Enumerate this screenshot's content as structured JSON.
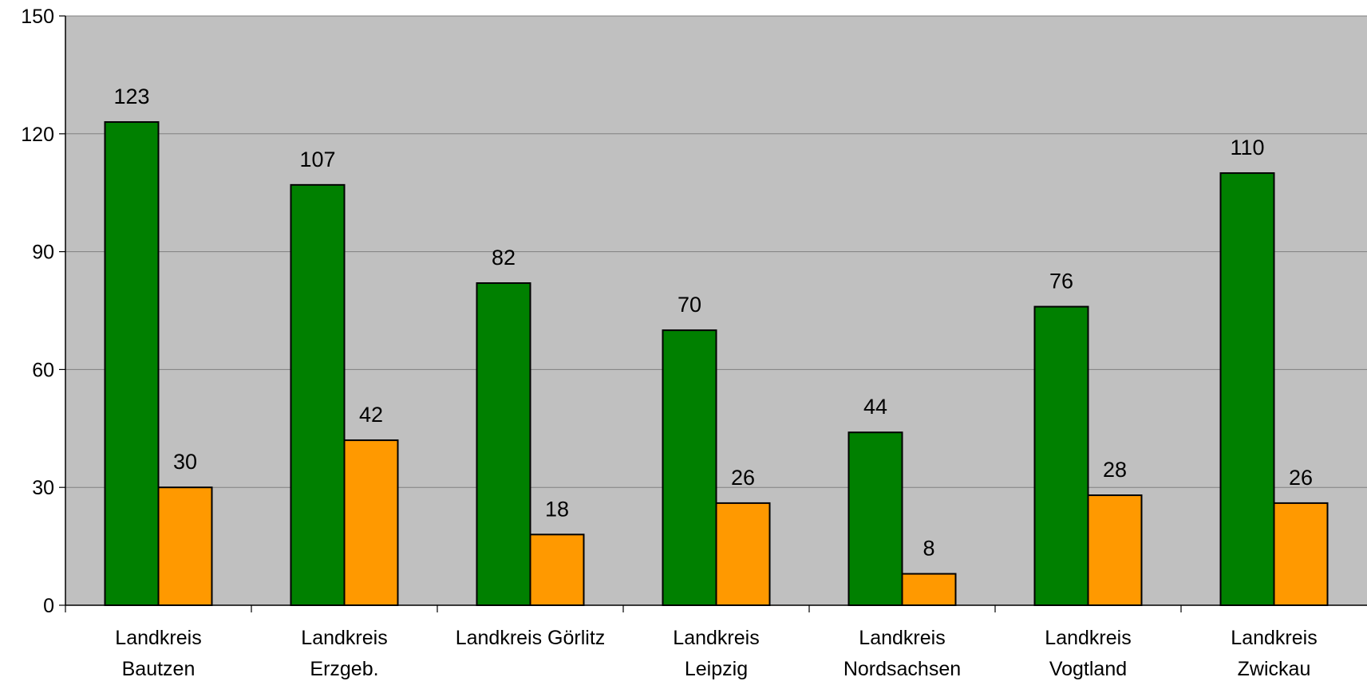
{
  "chart_data": {
    "type": "bar",
    "title": "",
    "xlabel": "",
    "ylabel": "",
    "ylim": [
      0,
      150
    ],
    "yticks": [
      0,
      30,
      60,
      90,
      120,
      150
    ],
    "grid": true,
    "legend": "none",
    "categories": [
      [
        "Landkreis",
        "Bautzen"
      ],
      [
        "Landkreis",
        "Erzgeb."
      ],
      [
        "Landkreis Görlitz"
      ],
      [
        "Landkreis",
        "Leipzig"
      ],
      [
        "Landkreis",
        "Nordsachsen"
      ],
      [
        "Landkreis",
        "Vogtland"
      ],
      [
        "Landkreis",
        "Zwickau"
      ]
    ],
    "series": [
      {
        "values": [
          123,
          107,
          82,
          70,
          44,
          76,
          110
        ],
        "color": "#008000"
      },
      {
        "values": [
          30,
          42,
          18,
          26,
          8,
          28,
          26
        ],
        "color": "#ff9900"
      }
    ],
    "plot_background": "#c0c0c0"
  }
}
